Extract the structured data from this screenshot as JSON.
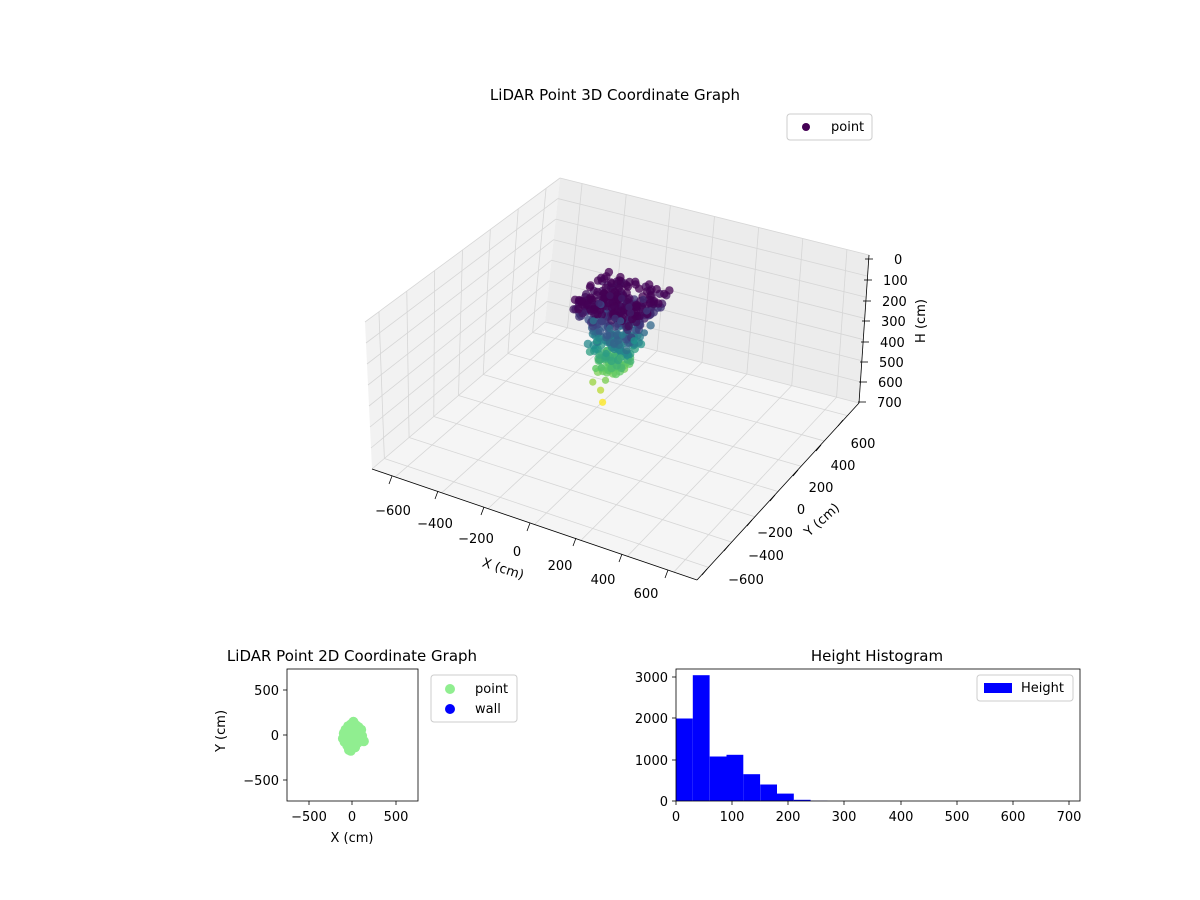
{
  "chart_data": [
    {
      "type": "scatter",
      "projection": "3d",
      "title": "LiDAR Point 3D Coordinate Graph",
      "xlabel": "X (cm)",
      "ylabel": "Y (cm)",
      "zlabel": "H (cm)",
      "xlim": [
        -700,
        700
      ],
      "ylim": [
        -700,
        700
      ],
      "zlim": [
        700,
        0
      ],
      "z_inverted": true,
      "xticks": [
        "−600",
        "−400",
        "−200",
        "0",
        "200",
        "400",
        "600"
      ],
      "yticks": [
        "−600",
        "−400",
        "−200",
        "0",
        "200",
        "400",
        "600"
      ],
      "zticks": [
        "0",
        "100",
        "200",
        "300",
        "400",
        "500",
        "600",
        "700"
      ],
      "grid": true,
      "legend": {
        "placement": "upper-right",
        "entries": [
          "point"
        ]
      },
      "colormap": "viridis",
      "colors": {
        "point_legend": "#440154"
      },
      "series": [
        {
          "name": "point",
          "cluster": {
            "x_range": [
              -150,
              150
            ],
            "y_range": [
              -200,
              150
            ],
            "h_range": [
              0,
              400
            ]
          },
          "points": [
            [
              -60,
              20,
              20
            ],
            [
              -20,
              40,
              30
            ],
            [
              30,
              10,
              40
            ],
            [
              60,
              -30,
              35
            ],
            [
              -90,
              -10,
              50
            ],
            [
              10,
              -60,
              60
            ],
            [
              -40,
              -80,
              80
            ],
            [
              80,
              60,
              70
            ],
            [
              -110,
              40,
              90
            ],
            [
              40,
              100,
              50
            ],
            [
              0,
              0,
              110
            ],
            [
              -30,
              -30,
              140
            ],
            [
              20,
              -20,
              160
            ],
            [
              -60,
              -60,
              180
            ],
            [
              50,
              20,
              200
            ],
            [
              -10,
              -90,
              220
            ],
            [
              30,
              -50,
              250
            ],
            [
              -20,
              -110,
              280
            ],
            [
              10,
              -130,
              320
            ],
            [
              -50,
              -100,
              300
            ],
            [
              70,
              -40,
              260
            ],
            [
              -120,
              0,
              150
            ],
            [
              100,
              10,
              140
            ],
            [
              -80,
              -40,
              210
            ],
            [
              0,
              -150,
              360
            ],
            [
              20,
              -170,
              400
            ],
            [
              -40,
              -140,
              340
            ]
          ]
        }
      ]
    },
    {
      "type": "scatter",
      "title": "LiDAR Point 2D Coordinate Graph",
      "xlabel": "X (cm)",
      "ylabel": "Y (cm)",
      "xlim": [
        -750,
        750
      ],
      "ylim": [
        -750,
        750
      ],
      "xticks": [
        "−500",
        "0",
        "500"
      ],
      "yticks": [
        "−500",
        "0",
        "500"
      ],
      "legend": {
        "placement": "outside-right",
        "entries": [
          "point",
          "wall"
        ]
      },
      "colors": {
        "point": "#90ee90",
        "wall": "#0000ff"
      },
      "series": [
        {
          "name": "point",
          "points": [
            [
              -100,
              20
            ],
            [
              -80,
              60
            ],
            [
              -50,
              100
            ],
            [
              -20,
              120
            ],
            [
              10,
              150
            ],
            [
              40,
              110
            ],
            [
              70,
              90
            ],
            [
              100,
              60
            ],
            [
              90,
              20
            ],
            [
              110,
              -10
            ],
            [
              130,
              -70
            ],
            [
              90,
              -50
            ],
            [
              60,
              -90
            ],
            [
              20,
              -100
            ],
            [
              0,
              -140
            ],
            [
              -20,
              -180
            ],
            [
              -40,
              -170
            ],
            [
              -60,
              -120
            ],
            [
              -90,
              -80
            ],
            [
              -110,
              -40
            ],
            [
              -30,
              40
            ],
            [
              30,
              40
            ],
            [
              0,
              0
            ],
            [
              -50,
              -30
            ],
            [
              50,
              -20
            ],
            [
              20,
              70
            ],
            [
              -70,
              30
            ],
            [
              60,
              30
            ],
            [
              -10,
              -60
            ],
            [
              30,
              -140
            ]
          ]
        },
        {
          "name": "wall",
          "points": []
        }
      ]
    },
    {
      "type": "bar",
      "subtype": "histogram",
      "title": "Height Histogram",
      "xlim": [
        0,
        720
      ],
      "ylim": [
        0,
        3200
      ],
      "xticks": [
        "0",
        "100",
        "200",
        "300",
        "400",
        "500",
        "600",
        "700"
      ],
      "yticks": [
        "0",
        "1000",
        "2000",
        "3000"
      ],
      "legend": {
        "placement": "upper-right",
        "entries": [
          "Height"
        ]
      },
      "colors": {
        "bars": "#0000ff"
      },
      "series": [
        {
          "name": "Height",
          "bin_width": 30,
          "bin_edges": [
            0,
            30,
            60,
            90,
            120,
            150,
            180,
            210,
            240,
            270
          ],
          "values": [
            2000,
            3050,
            1080,
            1120,
            650,
            400,
            180,
            30,
            5
          ]
        }
      ]
    }
  ]
}
